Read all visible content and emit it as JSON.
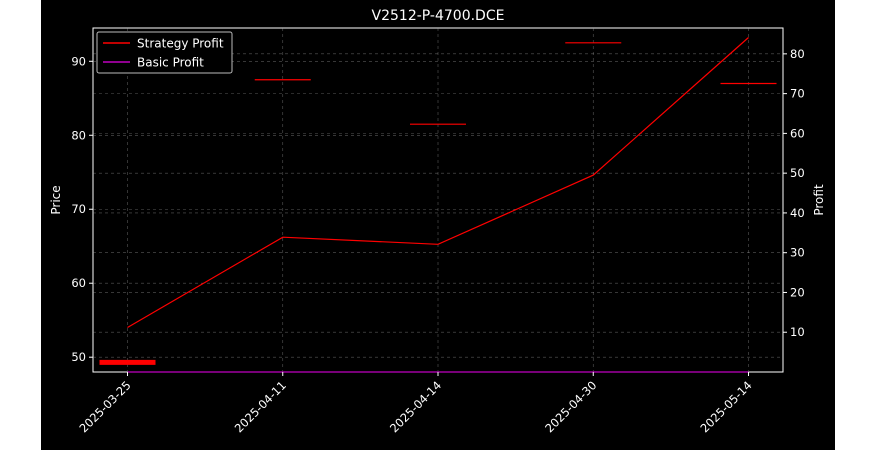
{
  "chart_data": {
    "type": "line",
    "title": "V2512-P-4700.DCE",
    "categories": [
      "2025-03-25",
      "2025-04-11",
      "2025-04-14",
      "2025-04-30",
      "2025-05-14"
    ],
    "left_axis": {
      "label": "Price",
      "ylim": [
        48,
        94.5
      ],
      "ticks": [
        50,
        60,
        70,
        80,
        90
      ]
    },
    "right_axis": {
      "label": "Profit",
      "ylim": [
        0,
        86.5
      ],
      "ticks": [
        10,
        20,
        30,
        40,
        50,
        60,
        70,
        80
      ]
    },
    "price_markers": [
      {
        "date": "2025-03-25",
        "value": 49.3
      },
      {
        "date": "2025-04-11",
        "value": 87.5
      },
      {
        "date": "2025-04-14",
        "value": 81.5
      },
      {
        "date": "2025-04-30",
        "value": 92.5
      },
      {
        "date": "2025-05-14",
        "value": 87.0
      }
    ],
    "series": [
      {
        "name": "Strategy Profit",
        "axis": "right",
        "color": "#ff0000",
        "values": [
          11.2,
          33.9,
          32.1,
          49.5,
          84.1
        ]
      },
      {
        "name": "Basic Profit",
        "axis": "right",
        "color": "#bf00bf",
        "values": [
          0,
          0,
          0,
          0,
          0
        ]
      }
    ],
    "grid": true,
    "legend": "top-left"
  }
}
